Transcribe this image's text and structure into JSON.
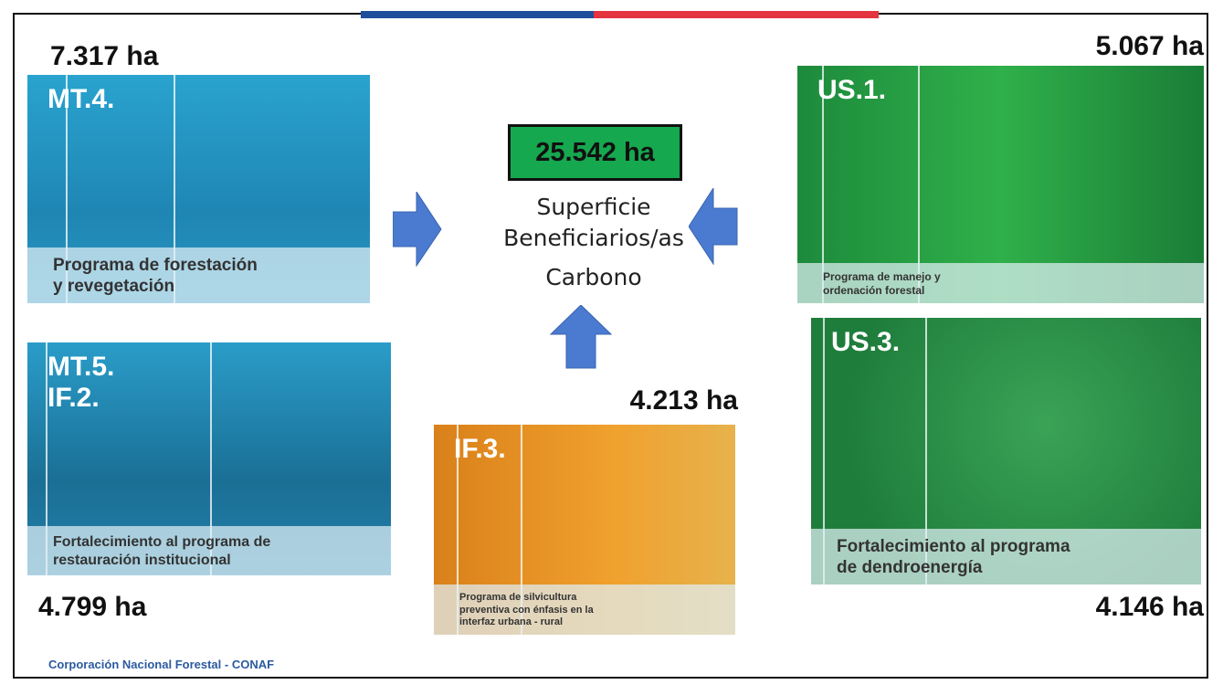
{
  "center": {
    "total": "25.542 ha",
    "lines": [
      "Superficie",
      "Beneficiarios/as",
      "Carbono"
    ]
  },
  "cards": [
    {
      "code": [
        "MT.4."
      ],
      "description": [
        "Programa de forestación",
        "y revegetación"
      ],
      "area": "7.317 ha"
    },
    {
      "code": [
        "US.1."
      ],
      "description": [
        "Programa de manejo y",
        "ordenación forestal"
      ],
      "area": "5.067 ha"
    },
    {
      "code": [
        "MT.5.",
        "IF.2."
      ],
      "description": [
        "Fortalecimiento al programa de",
        "restauración institucional"
      ],
      "area": "4.799 ha"
    },
    {
      "code": [
        "IF.3."
      ],
      "description": [
        "Programa de silvicultura",
        "preventiva con énfasis en la",
        "interfaz urbana - rural"
      ],
      "area": "4.213 ha"
    },
    {
      "code": [
        "US.3."
      ],
      "description": [
        "Fortalecimiento al programa",
        "de dendroenergía"
      ],
      "area": "4.146 ha"
    }
  ],
  "footer": "Corporación Nacional Forestal - CONAF"
}
